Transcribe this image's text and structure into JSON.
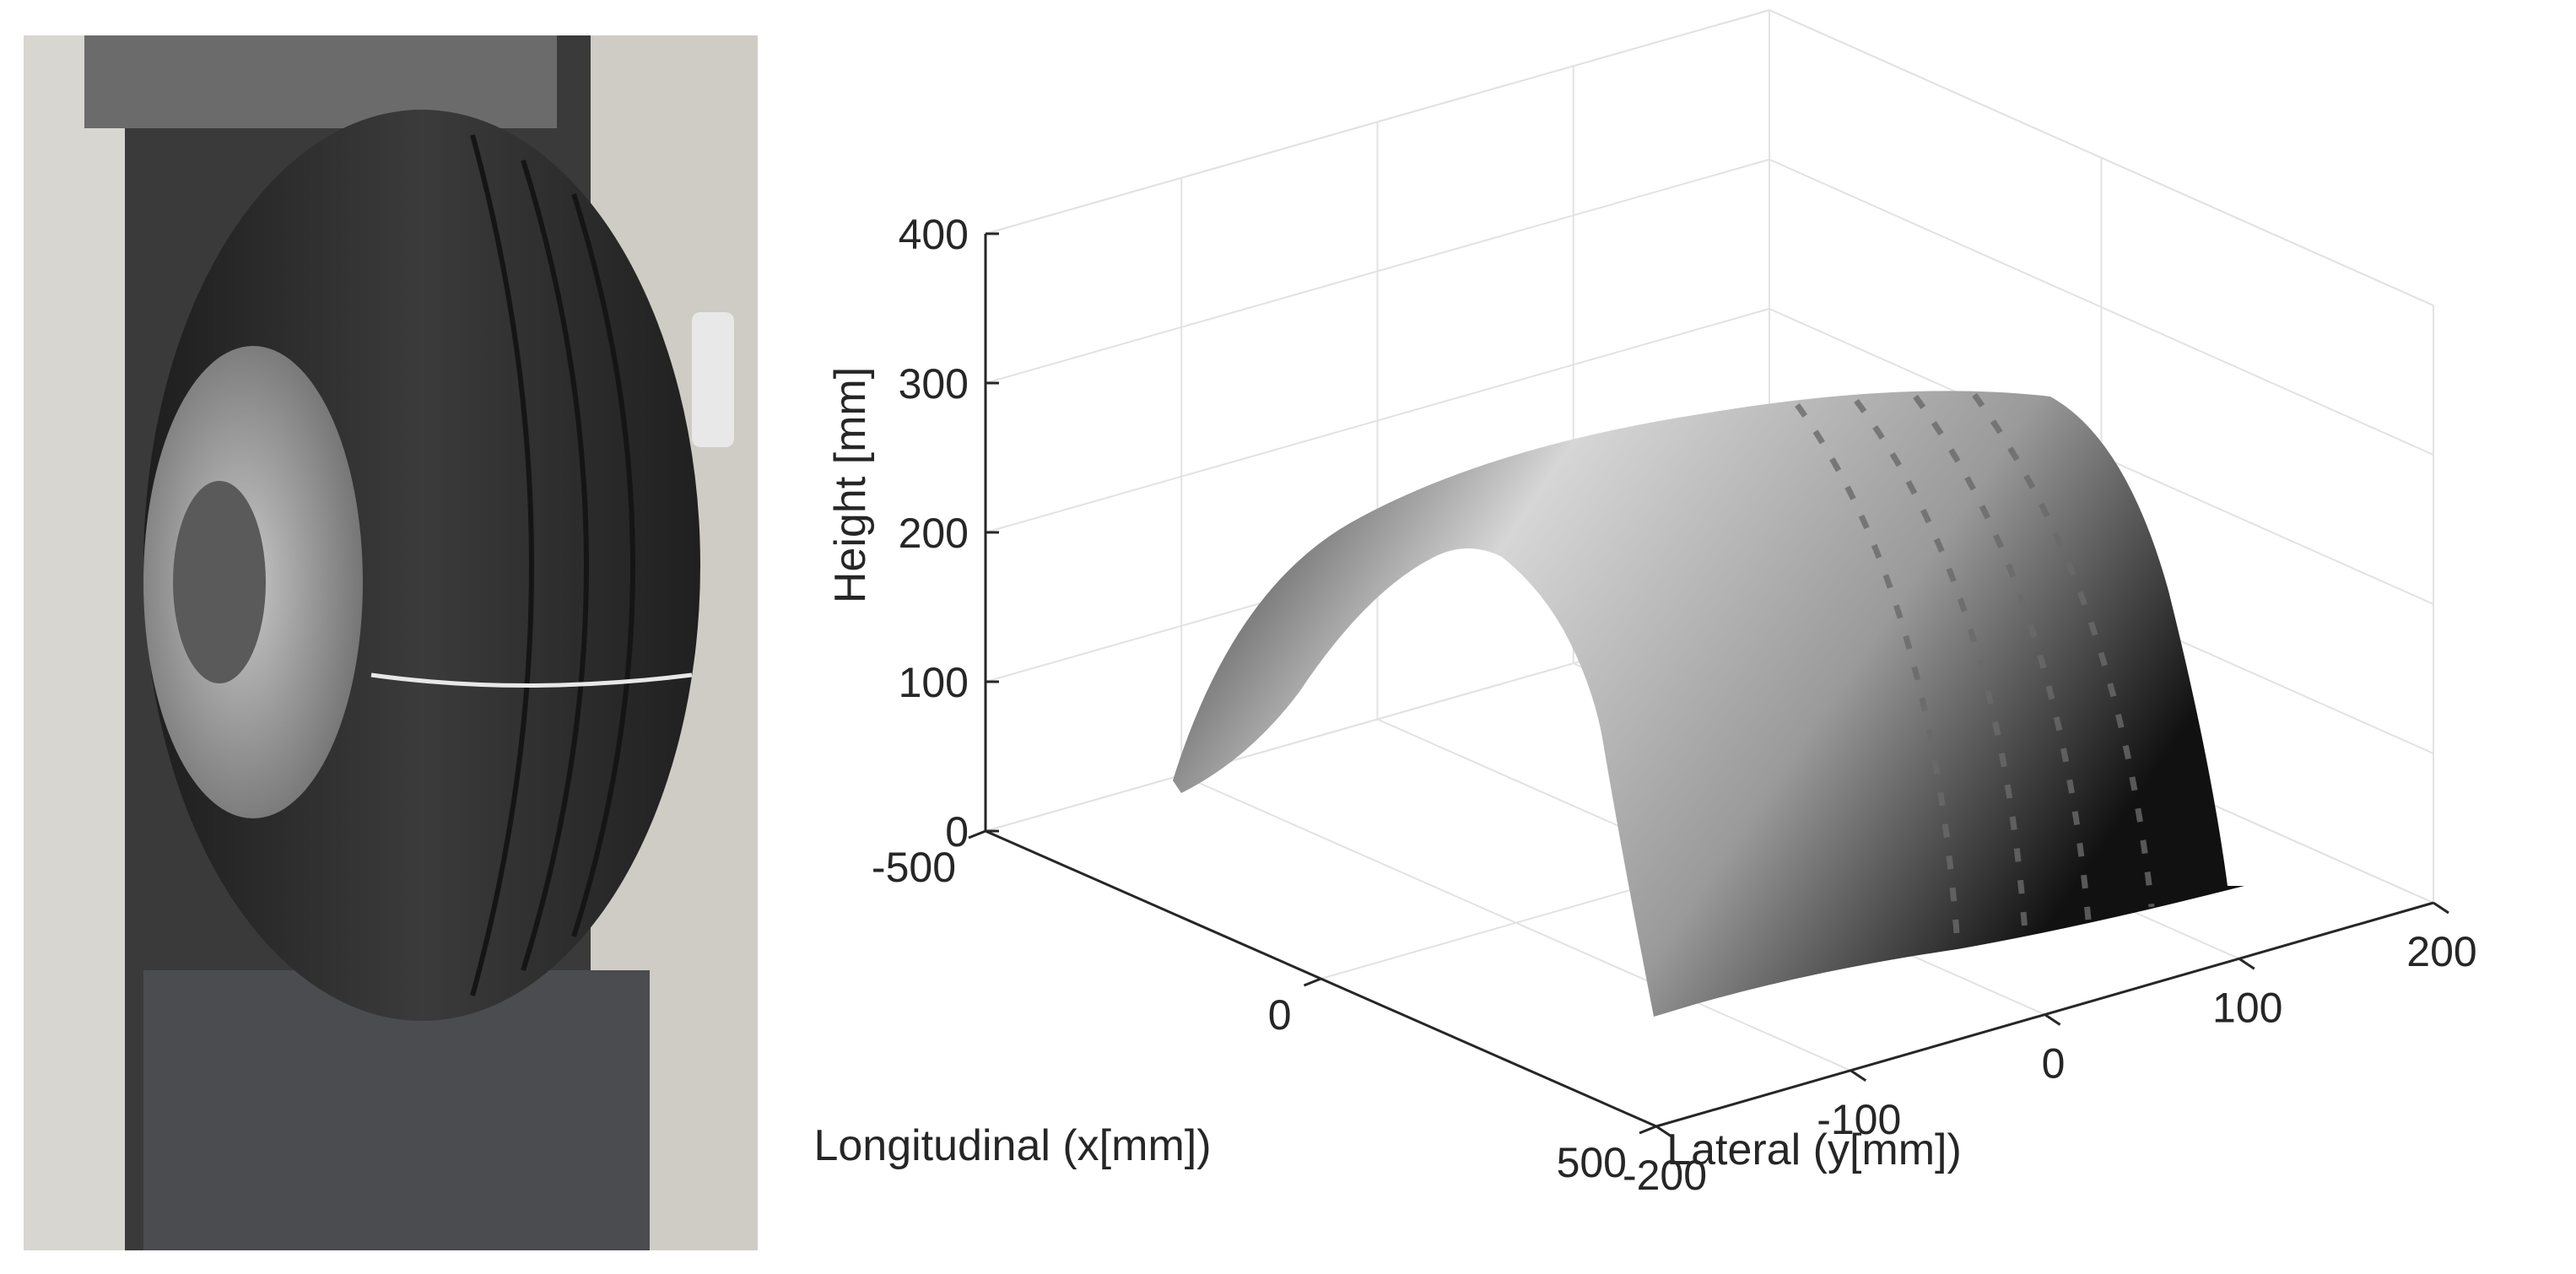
{
  "photo": {
    "subject": "truck tire mounted on steel wheel in a test rig",
    "colors": {
      "tire": "#2b2b2b",
      "rim": "#9a9a9a",
      "frame": "#d8d6d0",
      "background": "#3a3a3a"
    }
  },
  "chart_data": {
    "type": "surface3d",
    "title": "",
    "xlabel": "Longitudinal (x[mm])",
    "ylabel": "Lateral (y[mm])",
    "zlabel": "Height [mm]",
    "x_ticks": [
      "-500",
      "0",
      "500"
    ],
    "y_ticks": [
      "-200",
      "-100",
      "0",
      "100",
      "200"
    ],
    "z_ticks": [
      "0",
      "100",
      "200",
      "300",
      "400"
    ],
    "xlim": [
      -500,
      500
    ],
    "ylim": [
      -200,
      200
    ],
    "zlim": [
      0,
      400
    ],
    "grid": true,
    "colormap": "gray",
    "surface": {
      "description": "tire tread scan, arch-shaped",
      "x_extent": [
        -430,
        480
      ],
      "y_extent": [
        -180,
        190
      ],
      "peak_height": 300,
      "tread_grooves_y": [
        -100,
        -45,
        10,
        65
      ]
    }
  }
}
